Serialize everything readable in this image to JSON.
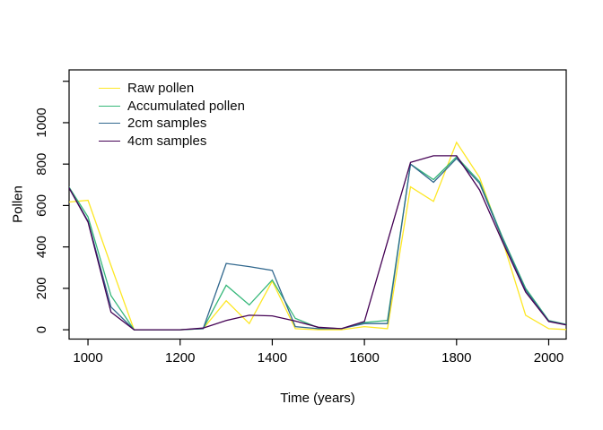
{
  "chart_data": {
    "type": "line",
    "title": "",
    "xlabel": "Time (years)",
    "ylabel": "Pollen",
    "grid": false,
    "legend_position": "top-left",
    "background": "#FFFFFF",
    "axis_color": "#000000",
    "xlim": [
      959,
      2038
    ],
    "ylim": [
      -45,
      1255
    ],
    "x_ticks": [
      1000,
      1200,
      1400,
      1600,
      1800,
      2000
    ],
    "x_tick_labels": [
      "1000",
      "1200",
      "1400",
      "1600",
      "1800",
      "2000"
    ],
    "y_ticks": [
      0,
      200,
      400,
      600,
      800,
      1000,
      1200
    ],
    "y_tick_labels": [
      "0",
      "200",
      "400",
      "600",
      "800",
      "1000",
      ""
    ],
    "x": [
      950,
      1000,
      1050,
      1100,
      1150,
      1200,
      1250,
      1300,
      1350,
      1400,
      1450,
      1500,
      1550,
      1600,
      1650,
      1700,
      1750,
      1800,
      1850,
      1900,
      1950,
      2000,
      2050
    ],
    "series": [
      {
        "name": "Raw pollen",
        "color": "#FDE725",
        "values": [
          615,
          625,
          310,
          0,
          0,
          0,
          5,
          140,
          30,
          235,
          5,
          0,
          0,
          15,
          5,
          690,
          620,
          905,
          735,
          430,
          70,
          5,
          0
        ]
      },
      {
        "name": "Accumulated pollen",
        "color": "#35B779",
        "values": [
          720,
          545,
          165,
          0,
          0,
          0,
          5,
          215,
          120,
          240,
          55,
          10,
          5,
          35,
          45,
          800,
          725,
          835,
          715,
          445,
          200,
          45,
          20
        ]
      },
      {
        "name": "2cm samples",
        "color": "#31688E",
        "values": [
          720,
          525,
          110,
          0,
          0,
          0,
          5,
          320,
          305,
          287,
          15,
          5,
          5,
          30,
          30,
          800,
          712,
          827,
          707,
          438,
          192,
          42,
          18
        ]
      },
      {
        "name": "4cm samples",
        "color": "#440154",
        "values": [
          720,
          520,
          85,
          0,
          0,
          0,
          8,
          45,
          70,
          67,
          42,
          12,
          5,
          40,
          425,
          808,
          840,
          840,
          675,
          424,
          182,
          40,
          18
        ]
      }
    ]
  }
}
